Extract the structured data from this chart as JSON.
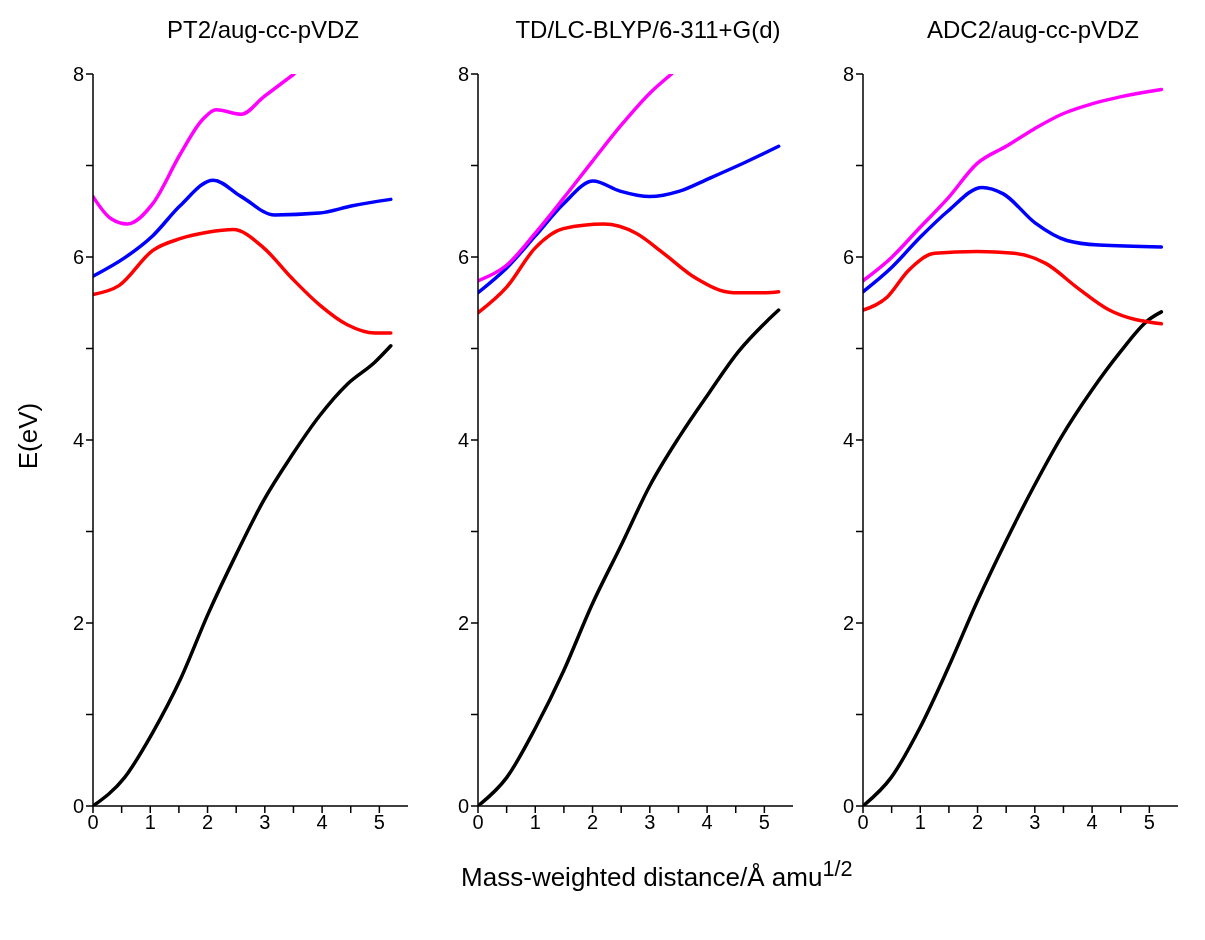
{
  "chart_data": [
    {
      "type": "line",
      "title": "PT2/aug-cc-pVDZ",
      "ylabel": "E(eV)",
      "xlim": [
        0,
        5.5
      ],
      "ylim": [
        0,
        8
      ],
      "xticks": [
        0,
        {
          "value": 0.5,
          "label": null
        },
        1,
        {
          "value": 1.5,
          "label": null
        },
        2,
        {
          "value": 2.5,
          "label": null
        },
        3,
        {
          "value": 3.5,
          "label": null
        },
        4,
        {
          "value": 4.5,
          "label": null
        },
        5
      ],
      "yticks": [
        0,
        {
          "value": 1,
          "label": null
        },
        2,
        {
          "value": 3,
          "label": null
        },
        4,
        {
          "value": 5,
          "label": null
        },
        6,
        {
          "value": 7,
          "label": null
        },
        8
      ],
      "series": [
        {
          "color": "#000000",
          "x": [
            0,
            0.55,
            1.04,
            1.53,
            2.01,
            2.5,
            2.98,
            3.47,
            3.95,
            4.44,
            4.92,
            5.2
          ],
          "values": [
            0,
            0.31,
            0.8,
            1.39,
            2.1,
            2.75,
            3.34,
            3.83,
            4.26,
            4.61,
            4.85,
            5.03
          ]
        },
        {
          "color": "#ff0000",
          "x": [
            0,
            0.46,
            1.04,
            1.52,
            2.0,
            2.45,
            2.98,
            3.47,
            3.95,
            4.44,
            4.92,
            5.2
          ],
          "values": [
            5.59,
            5.69,
            6.07,
            6.2,
            6.27,
            6.3,
            6.1,
            5.77,
            5.48,
            5.26,
            5.17,
            5.17
          ]
        },
        {
          "color": "#0000ff",
          "x": [
            0,
            0.55,
            1.04,
            1.52,
            2.1,
            2.59,
            3.17,
            3.95,
            4.53,
            5.2
          ],
          "values": [
            5.79,
            5.99,
            6.23,
            6.56,
            6.84,
            6.66,
            6.46,
            6.48,
            6.56,
            6.63
          ]
        },
        {
          "color": "#ff00ff",
          "x": [
            0,
            0.31,
            0.6,
            1.04,
            1.52,
            1.91,
            2.15,
            2.59,
            2.98,
            3.51
          ],
          "values": [
            6.66,
            6.42,
            6.36,
            6.58,
            7.12,
            7.5,
            7.61,
            7.56,
            7.75,
            8.0
          ]
        }
      ]
    },
    {
      "type": "line",
      "title": "TD/LC-BLYP/6-311+G(d)",
      "xlabel": "Mass-weighted distance/Å amu$^{1/2}$",
      "xlim": [
        0,
        5.5
      ],
      "ylim": [
        0,
        8
      ],
      "xticks": [
        0,
        {
          "value": 0.5,
          "label": null
        },
        1,
        {
          "value": 1.5,
          "label": null
        },
        2,
        {
          "value": 2.5,
          "label": null
        },
        3,
        {
          "value": 3.5,
          "label": null
        },
        4,
        {
          "value": 4.5,
          "label": null
        },
        5
      ],
      "yticks": [
        0,
        {
          "value": 1,
          "label": null
        },
        2,
        {
          "value": 3,
          "label": null
        },
        4,
        {
          "value": 5,
          "label": null
        },
        6,
        {
          "value": 7,
          "label": null
        },
        8
      ],
      "series": [
        {
          "color": "#000000",
          "x": [
            0,
            0.5,
            1.0,
            1.49,
            1.99,
            2.5,
            3.0,
            3.52,
            4.04,
            4.54,
            5.03,
            5.25
          ],
          "values": [
            0,
            0.31,
            0.85,
            1.47,
            2.2,
            2.85,
            3.5,
            4.04,
            4.52,
            4.96,
            5.29,
            5.42
          ]
        },
        {
          "color": "#ff0000",
          "x": [
            0,
            0.5,
            1.0,
            1.49,
            2.2,
            2.76,
            3.24,
            3.8,
            4.46,
            5.03,
            5.25
          ],
          "values": [
            5.39,
            5.67,
            6.1,
            6.31,
            6.36,
            6.26,
            6.04,
            5.77,
            5.61,
            5.61,
            5.62
          ]
        },
        {
          "color": "#0000ff",
          "x": [
            0,
            0.5,
            1.0,
            1.49,
            2.01,
            2.48,
            3.0,
            3.52,
            4.04,
            4.65,
            5.25
          ],
          "values": [
            5.61,
            5.88,
            6.23,
            6.58,
            6.83,
            6.72,
            6.66,
            6.72,
            6.86,
            7.03,
            7.21
          ]
        },
        {
          "color": "#ff00ff",
          "x": [
            0,
            0.5,
            1.0,
            1.49,
            1.99,
            2.5,
            3.0,
            3.38
          ],
          "values": [
            5.74,
            5.91,
            6.26,
            6.64,
            7.04,
            7.44,
            7.79,
            8.0
          ]
        }
      ]
    },
    {
      "type": "line",
      "title": "ADC2/aug-cc-pVDZ",
      "xlim": [
        0,
        5.5
      ],
      "ylim": [
        0,
        8
      ],
      "xticks": [
        0,
        {
          "value": 0.5,
          "label": null
        },
        1,
        {
          "value": 1.5,
          "label": null
        },
        2,
        {
          "value": 2.5,
          "label": null
        },
        3,
        {
          "value": 3.5,
          "label": null
        },
        4,
        {
          "value": 4.5,
          "label": null
        },
        5
      ],
      "yticks": [
        0,
        {
          "value": 1,
          "label": null
        },
        2,
        {
          "value": 3,
          "label": null
        },
        4,
        {
          "value": 5,
          "label": null
        },
        6,
        {
          "value": 7,
          "label": null
        },
        8
      ],
      "series": [
        {
          "color": "#000000",
          "x": [
            0,
            0.49,
            0.99,
            1.48,
            1.99,
            2.5,
            2.99,
            3.47,
            3.98,
            4.49,
            4.98,
            5.21
          ],
          "values": [
            0,
            0.31,
            0.85,
            1.5,
            2.23,
            2.9,
            3.5,
            4.04,
            4.53,
            4.96,
            5.31,
            5.4
          ]
        },
        {
          "color": "#ff0000",
          "x": [
            0,
            0.42,
            0.79,
            1.25,
            1.99,
            2.64,
            3.19,
            3.75,
            4.3,
            5.21
          ],
          "values": [
            5.42,
            5.56,
            5.85,
            6.04,
            6.06,
            6.04,
            5.93,
            5.66,
            5.42,
            5.27
          ]
        },
        {
          "color": "#0000ff",
          "x": [
            0,
            0.49,
            0.99,
            1.48,
            2.08,
            2.45,
            3.01,
            3.56,
            4.12,
            5.21
          ],
          "values": [
            5.62,
            5.88,
            6.21,
            6.5,
            6.76,
            6.69,
            6.37,
            6.18,
            6.13,
            6.11
          ]
        },
        {
          "color": "#ff00ff",
          "x": [
            0,
            0.49,
            0.99,
            1.48,
            1.99,
            2.5,
            2.99,
            3.47,
            3.98,
            4.49,
            5.21
          ],
          "values": [
            5.74,
            5.99,
            6.32,
            6.64,
            7.02,
            7.21,
            7.4,
            7.56,
            7.67,
            7.75,
            7.83
          ]
        }
      ]
    }
  ]
}
